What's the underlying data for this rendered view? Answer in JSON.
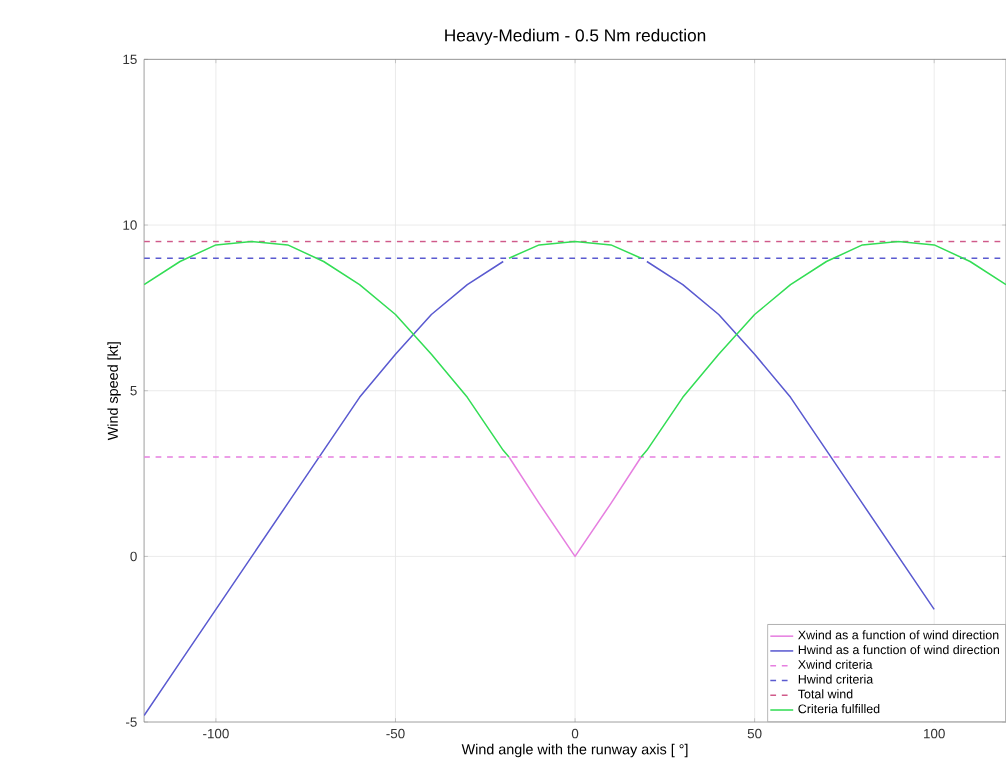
{
  "chart_data": {
    "type": "line",
    "title": "Heavy-Medium - 0.5 Nm reduction",
    "xlabel": "Wind angle with the runway axis [ °]",
    "ylabel": "Wind speed [kt]",
    "xlim": [
      -120,
      120
    ],
    "xticks": [
      -100,
      -50,
      0,
      50,
      100
    ],
    "ylim": [
      -5,
      15
    ],
    "yticks": [
      -5,
      0,
      5,
      10,
      15
    ],
    "grid": true,
    "legend": "bottom right",
    "series": [
      {
        "name": "Xwind as a function of wind direction",
        "color": "#e67fe0",
        "line_style": "solid",
        "x": [
          -18.4,
          -10,
          0,
          10,
          18.4
        ],
        "values": [
          3.0,
          1.6,
          0,
          1.6,
          3.0
        ]
      },
      {
        "name": "Hwind as a function of wind direction",
        "color": "#5a5ad0",
        "line_style": "solid",
        "x": [
          -120,
          -110,
          -100,
          -90,
          -80,
          -70,
          -60,
          -50,
          -40,
          -30,
          -20,
          -10,
          0,
          10,
          20,
          30,
          40,
          50,
          60,
          70,
          80,
          90,
          100
        ],
        "values": [
          -4.8,
          -3.2,
          -1.6,
          0,
          1.6,
          3.2,
          4.8,
          6.1,
          7.3,
          8.2,
          8.9,
          null,
          null,
          null,
          8.9,
          8.2,
          7.3,
          6.1,
          4.8,
          3.2,
          1.6,
          0,
          -1.6
        ]
      },
      {
        "name": "Xwind criteria",
        "color": "#e67fe0",
        "line_style": "dashed",
        "x": [
          -120,
          120
        ],
        "values": [
          3,
          3
        ]
      },
      {
        "name": "Hwind criteria",
        "color": "#5a5ad0",
        "line_style": "dashed",
        "x": [
          -120,
          120
        ],
        "values": [
          9,
          9
        ]
      },
      {
        "name": "Total wind",
        "color": "#d05a8a",
        "line_style": "dashed",
        "x": [
          -120,
          120
        ],
        "values": [
          9.5,
          9.5
        ]
      },
      {
        "name": "Criteria fulfilled",
        "color": "#33dd55",
        "line_style": "solid",
        "x": [
          -120,
          -110,
          -100,
          -90,
          -80,
          -70,
          -60,
          -50,
          -40,
          -30,
          -20,
          -18.4
        ],
        "values": [
          8.2,
          8.9,
          9.4,
          9.5,
          9.4,
          8.9,
          8.2,
          7.3,
          6.1,
          4.8,
          3.2,
          3.0
        ]
      },
      {
        "color": "#33dd55",
        "line_style": "solid",
        "x": [
          -18.4,
          -10,
          0,
          10,
          18.4
        ],
        "values": [
          9.0,
          9.4,
          9.5,
          9.4,
          9.0
        ]
      },
      {
        "color": "#33dd55",
        "line_style": "solid",
        "x": [
          18.4,
          20,
          30,
          40,
          50,
          60,
          70,
          80,
          90,
          100,
          110,
          120
        ],
        "values": [
          3.0,
          3.2,
          4.8,
          6.1,
          7.3,
          8.2,
          8.9,
          9.4,
          9.5,
          9.4,
          8.9,
          8.2
        ]
      }
    ]
  }
}
